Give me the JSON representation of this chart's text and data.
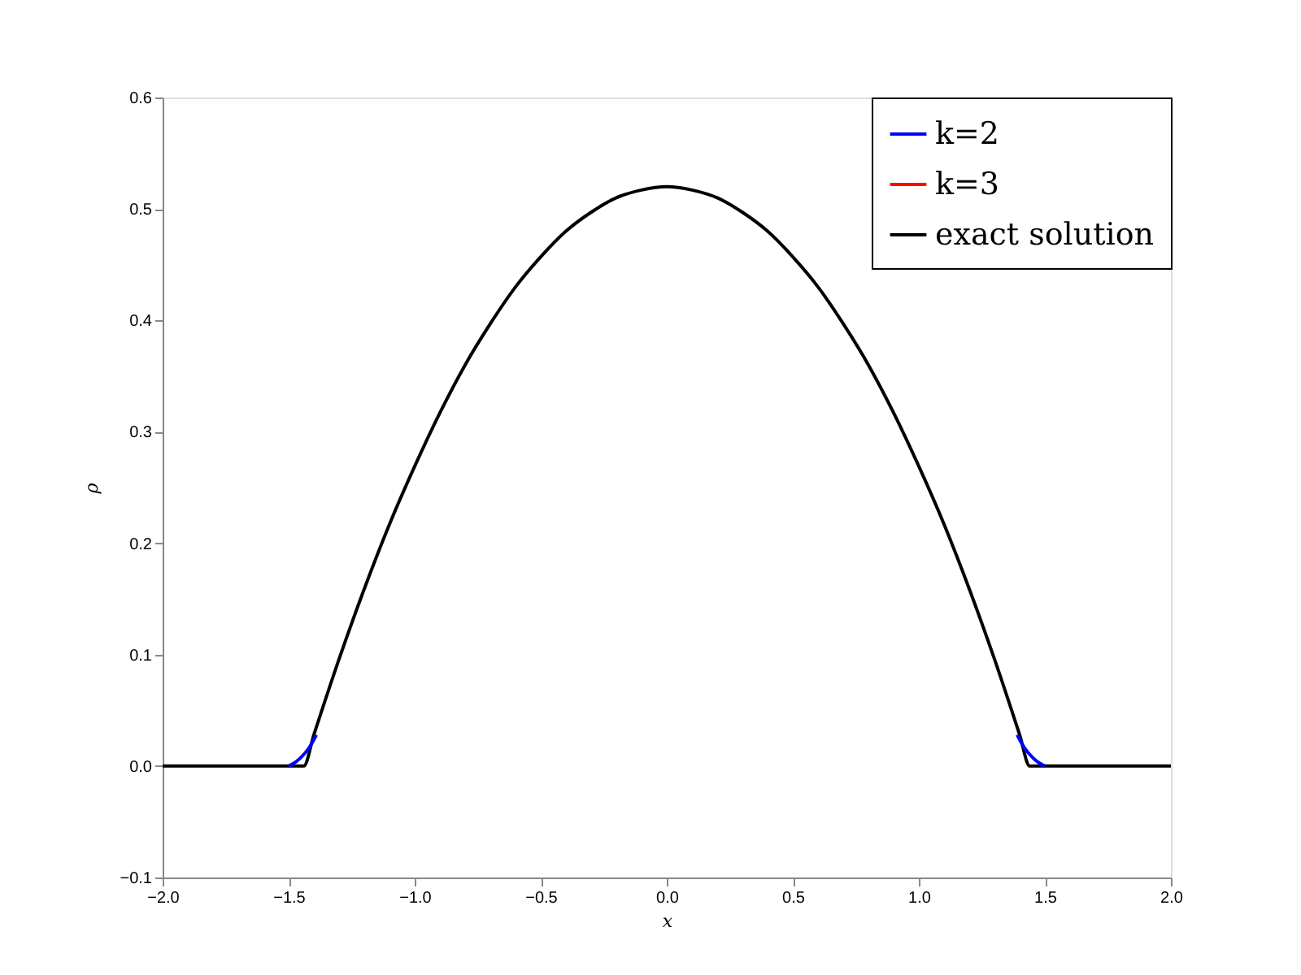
{
  "chart_data": {
    "type": "line",
    "xlabel": "x",
    "ylabel": "ρ",
    "xlim": [
      -2.0,
      2.0
    ],
    "ylim": [
      -0.1,
      0.6
    ],
    "xticks": [
      {
        "value": -2.0,
        "label": "−2.0"
      },
      {
        "value": -1.5,
        "label": "−1.5"
      },
      {
        "value": -1.0,
        "label": "−1.0"
      },
      {
        "value": -0.5,
        "label": "−0.5"
      },
      {
        "value": 0.0,
        "label": "0.0"
      },
      {
        "value": 0.5,
        "label": "0.5"
      },
      {
        "value": 1.0,
        "label": "1.0"
      },
      {
        "value": 1.5,
        "label": "1.5"
      },
      {
        "value": 2.0,
        "label": "2.0"
      }
    ],
    "yticks": [
      {
        "value": -0.1,
        "label": "−0.1"
      },
      {
        "value": 0.0,
        "label": "0.0"
      },
      {
        "value": 0.1,
        "label": "0.1"
      },
      {
        "value": 0.2,
        "label": "0.2"
      },
      {
        "value": 0.3,
        "label": "0.3"
      },
      {
        "value": 0.4,
        "label": "0.4"
      },
      {
        "value": 0.5,
        "label": "0.5"
      },
      {
        "value": 0.6,
        "label": "0.6"
      }
    ],
    "grid": false,
    "legend": "top right",
    "marker": "none",
    "line_style": "solid",
    "series": [
      {
        "name": "k=2",
        "color": "#0000ff",
        "x": [
          -1.5,
          -1.47,
          -1.45,
          -1.42,
          -1.39,
          0.0,
          1.39,
          1.42,
          1.45,
          1.47,
          1.5
        ],
        "values": [
          0,
          0.004,
          0.008,
          0.016,
          0.028,
          null,
          0.028,
          0.016,
          0.008,
          0.004,
          0
        ]
      },
      {
        "name": "k=3",
        "color": "#ff0000",
        "values": [
          null
        ]
      },
      {
        "name": "exact solution",
        "color": "#000000",
        "x": [
          -2.0,
          -1.44,
          -1.4,
          -1.3,
          -1.2,
          -1.1,
          -1.0,
          -0.9,
          -0.8,
          -0.7,
          -0.6,
          -0.5,
          -0.4,
          -0.3,
          -0.2,
          -0.1,
          0.0,
          0.1,
          0.2,
          0.3,
          0.4,
          0.5,
          0.6,
          0.7,
          0.8,
          0.9,
          1.0,
          1.1,
          1.2,
          1.3,
          1.4,
          1.44,
          2.0
        ],
        "values": [
          0,
          0,
          0.028,
          0.096,
          0.159,
          0.217,
          0.269,
          0.317,
          0.36,
          0.397,
          0.43,
          0.457,
          0.48,
          0.497,
          0.51,
          0.517,
          0.52,
          0.517,
          0.51,
          0.497,
          0.48,
          0.457,
          0.43,
          0.397,
          0.36,
          0.317,
          0.269,
          0.217,
          0.159,
          0.096,
          0.028,
          0,
          0
        ]
      }
    ]
  }
}
